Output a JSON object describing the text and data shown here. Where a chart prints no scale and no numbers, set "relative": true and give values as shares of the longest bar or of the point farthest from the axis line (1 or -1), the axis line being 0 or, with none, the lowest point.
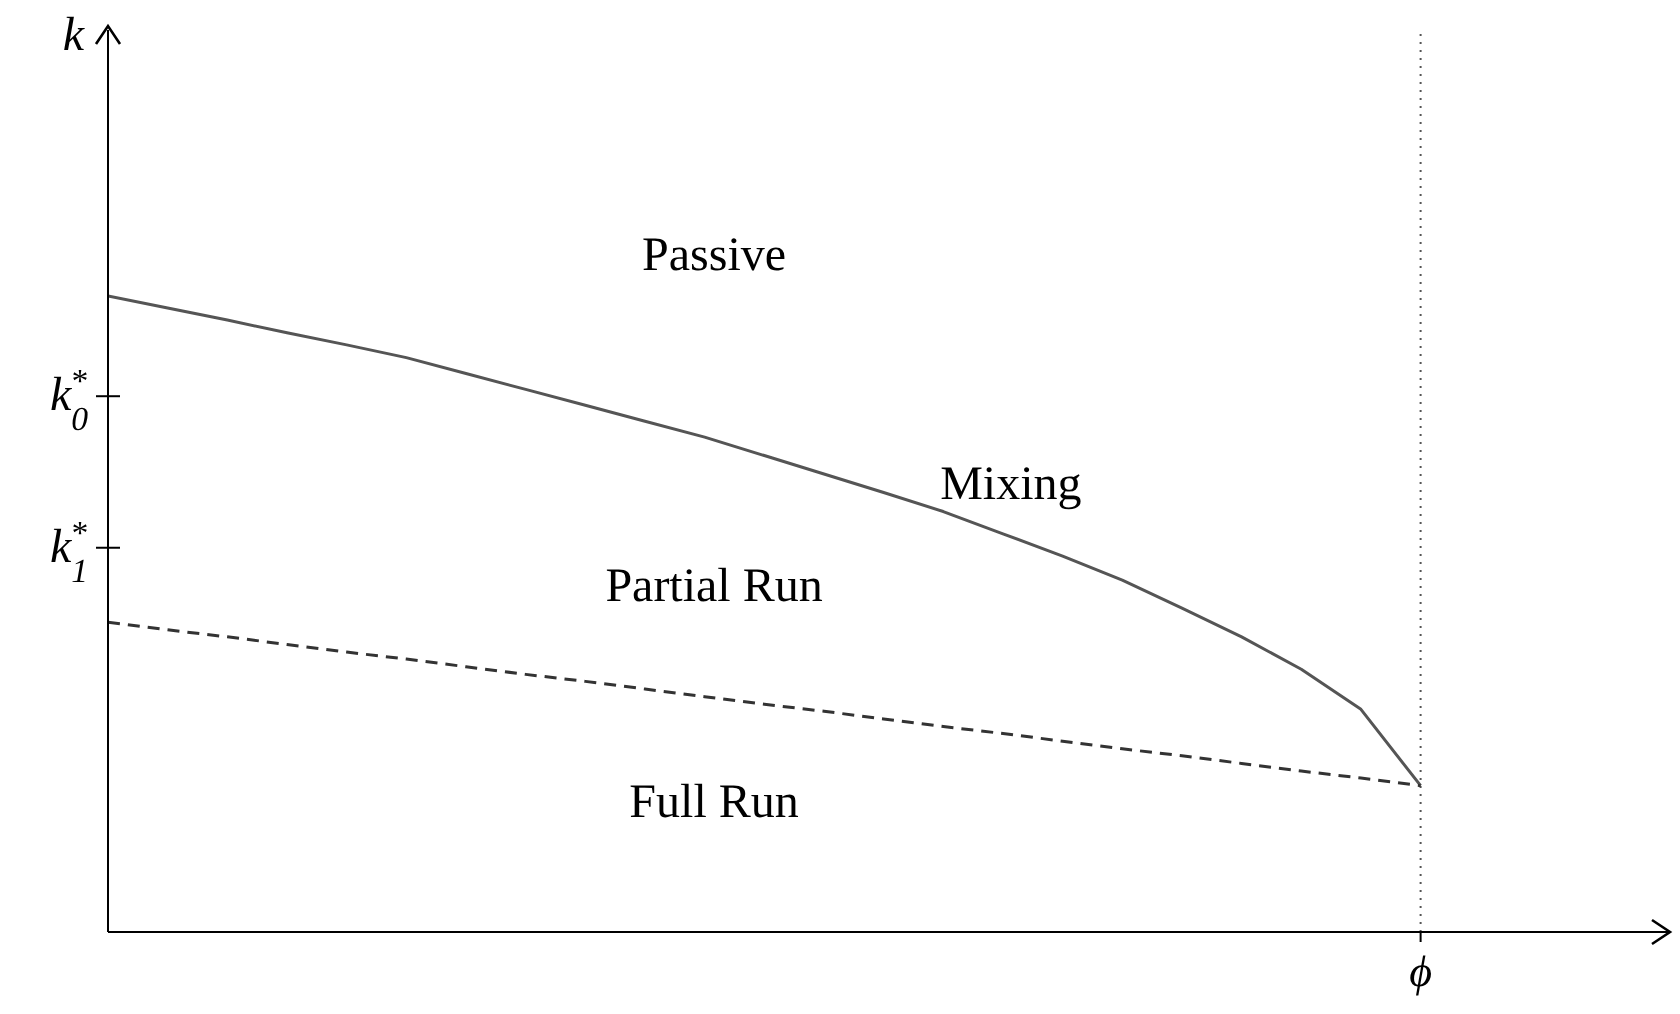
{
  "chart_data": {
    "type": "line",
    "relative": true,
    "ylabel": "k",
    "categories": [
      null,
      null,
      null,
      null,
      null,
      null,
      null,
      null,
      null,
      null,
      null,
      null,
      null,
      null,
      null,
      null,
      null,
      null,
      null,
      null,
      null,
      null,
      null
    ],
    "series": [
      {
        "color": "#555555",
        "line_style": "solid",
        "values": [
          1.0,
          0.981,
          0.962,
          0.942,
          0.923,
          0.903,
          0.878,
          0.853,
          0.828,
          0.803,
          0.778,
          0.749,
          0.72,
          0.691,
          0.661,
          0.626,
          0.591,
          0.553,
          0.509,
          0.464,
          0.413,
          0.35,
          0.23
        ]
      },
      {
        "color": "#333333",
        "line_style": "dashed",
        "values": [
          0.487,
          0.475,
          0.464,
          0.452,
          0.44,
          0.429,
          0.417,
          0.405,
          0.394,
          0.382,
          0.37,
          0.358,
          0.347,
          0.335,
          0.323,
          0.312,
          0.3,
          0.288,
          0.277,
          0.265,
          0.253,
          0.242,
          0.23
        ]
      }
    ],
    "ref_lines": [
      {
        "axis": "x",
        "label": "ϕ",
        "color": "#555555",
        "line_style": "dotted"
      }
    ],
    "annotations": [
      "Passive",
      "Mixing",
      "Partial Run",
      "Full Run",
      "k$_{0}$$^{*}$",
      "k$_{1}$$^{*}$"
    ],
    "grid": false,
    "legend": false,
    "marker": "none"
  }
}
